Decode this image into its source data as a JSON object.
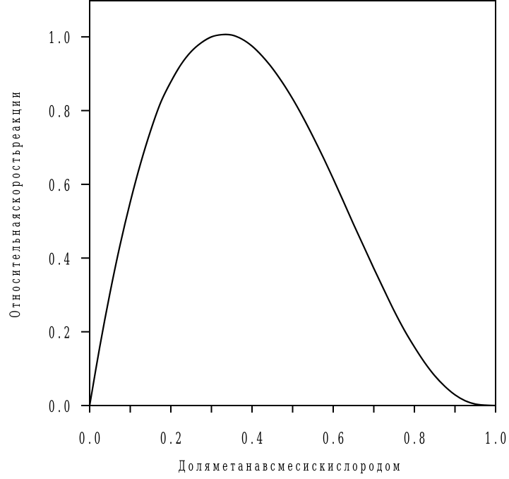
{
  "chart_data": {
    "type": "line",
    "title": "",
    "xlabel": "Доля метана в смеси с кислородом",
    "ylabel": "Относительная скорость реакции",
    "xlim": [
      0.0,
      1.0
    ],
    "ylim": [
      0.0,
      1.1
    ],
    "grid": false,
    "x_ticks": [
      {
        "value": 0.0,
        "label": "0.0"
      },
      {
        "value": 0.2,
        "label": "0.2"
      },
      {
        "value": 0.4,
        "label": "0.4"
      },
      {
        "value": 0.6,
        "label": "0.6"
      },
      {
        "value": 0.8,
        "label": "0.8"
      },
      {
        "value": 1.0,
        "label": "1.0"
      }
    ],
    "x_minor_ticks": [
      0.1,
      0.3,
      0.5,
      0.7,
      0.9
    ],
    "y_ticks": [
      {
        "value": 0.0,
        "label": "0.0"
      },
      {
        "value": 0.2,
        "label": "0.2"
      },
      {
        "value": 0.4,
        "label": "0.4"
      },
      {
        "value": 0.6,
        "label": "0.6"
      },
      {
        "value": 0.8,
        "label": "0.8"
      },
      {
        "value": 1.0,
        "label": "1.0"
      }
    ],
    "series": [
      {
        "color": "#000000",
        "x": [
          0.0,
          0.025,
          0.05,
          0.075,
          0.1,
          0.125,
          0.15,
          0.175,
          0.2,
          0.225,
          0.25,
          0.275,
          0.3,
          0.325,
          0.35,
          0.375,
          0.4,
          0.425,
          0.45,
          0.475,
          0.5,
          0.525,
          0.55,
          0.575,
          0.6,
          0.625,
          0.65,
          0.675,
          0.7,
          0.725,
          0.75,
          0.775,
          0.8,
          0.825,
          0.85,
          0.875,
          0.9,
          0.925,
          0.95,
          0.975,
          1.0
        ],
        "y": [
          0.0,
          0.16,
          0.305,
          0.436,
          0.552,
          0.655,
          0.745,
          0.822,
          0.878,
          0.925,
          0.96,
          0.984,
          1.0,
          1.006,
          1.005,
          0.994,
          0.975,
          0.948,
          0.915,
          0.876,
          0.832,
          0.783,
          0.73,
          0.674,
          0.615,
          0.554,
          0.492,
          0.432,
          0.372,
          0.314,
          0.257,
          0.205,
          0.159,
          0.117,
          0.081,
          0.052,
          0.029,
          0.013,
          0.004,
          0.001,
          0.0
        ]
      }
    ]
  }
}
